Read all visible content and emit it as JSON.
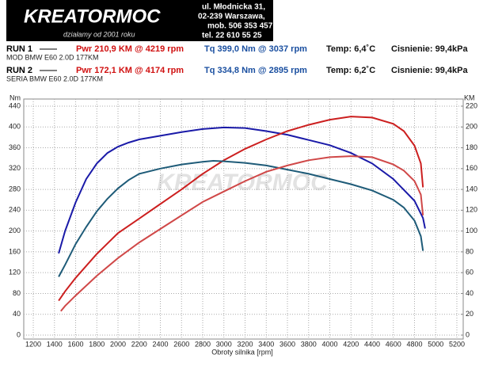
{
  "header": {
    "logo": "KREATORMOC",
    "slogan": "działamy od 2001 roku",
    "address": [
      "ul. Młodnicka 31,",
      "02-239  Warszawa,",
      "mob.  506 353 457",
      "tel.  22 610 55 25"
    ]
  },
  "runs": [
    {
      "label": "RUN 1",
      "pwr": "Pwr  210,9 KM @ 4219 rpm",
      "tq": "Tq 399,0 Nm @ 3037 rpm",
      "temp": "Temp: 6,4˚C",
      "pressure": "Cisnienie: 99,4kPa",
      "car": "MOD BMW E60 2.0D 177KM"
    },
    {
      "label": "RUN 2",
      "pwr": "Pwr  172,1 KM @ 4174 rpm",
      "tq": "Tq 334,8 Nm @ 2895 rpm",
      "temp": "Temp: 6,2˚C",
      "pressure": "Cisnienie: 99,4kPa",
      "car": "SERIA BMW E60 2.0D 177KM"
    }
  ],
  "chart_data": {
    "type": "line",
    "ylabel": "Nm",
    "y2label": "KM",
    "xlabel": "Obroty silnika [rpm]",
    "xlim": [
      1110,
      5260
    ],
    "xticks": [
      1200,
      1400,
      1600,
      1800,
      2000,
      2200,
      2400,
      2600,
      2800,
      3000,
      3200,
      3400,
      3600,
      3800,
      4000,
      4200,
      4400,
      4600,
      4800,
      5000,
      5200
    ],
    "ylim": [
      0,
      440
    ],
    "yticks": [
      0,
      40,
      80,
      120,
      160,
      200,
      240,
      280,
      320,
      360,
      400,
      440
    ],
    "y2lim": [
      0,
      220
    ],
    "y2ticks": [
      0,
      20,
      40,
      60,
      80,
      100,
      120,
      140,
      160,
      180,
      200,
      220
    ],
    "grid": true,
    "series": [
      {
        "color": "#1a1aa8",
        "x": [
          1440,
          1500,
          1600,
          1700,
          1800,
          1900,
          2000,
          2100,
          2200,
          2400,
          2600,
          2800,
          3000,
          3200,
          3400,
          3600,
          3800,
          4000,
          4200,
          4400,
          4600,
          4800,
          4880,
          4900
        ],
        "values": [
          157,
          200,
          255,
          300,
          330,
          350,
          362,
          370,
          376,
          383,
          390,
          396,
          399,
          398,
          392,
          385,
          375,
          365,
          350,
          330,
          300,
          258,
          225,
          205
        ]
      },
      {
        "color": "#cc1f1f",
        "axis": "y2",
        "x": [
          1440,
          1500,
          1600,
          1800,
          2000,
          2200,
          2400,
          2600,
          2800,
          3000,
          3200,
          3400,
          3600,
          3800,
          4000,
          4200,
          4400,
          4600,
          4700,
          4800,
          4860,
          4880
        ],
        "values": [
          33,
          42,
          55,
          78,
          98,
          112,
          126,
          140,
          155,
          168,
          179,
          188,
          196,
          202,
          207,
          210,
          209,
          203,
          196,
          182,
          165,
          142
        ]
      },
      {
        "color": "#1e5b78",
        "x": [
          1440,
          1500,
          1600,
          1700,
          1800,
          1900,
          2000,
          2100,
          2200,
          2400,
          2600,
          2800,
          2900,
          3000,
          3200,
          3400,
          3600,
          3800,
          4000,
          4200,
          4400,
          4600,
          4700,
          4800,
          4860,
          4880
        ],
        "values": [
          112,
          135,
          175,
          208,
          238,
          262,
          282,
          298,
          310,
          320,
          328,
          333,
          335,
          334,
          331,
          326,
          318,
          310,
          300,
          290,
          278,
          260,
          245,
          220,
          190,
          162
        ]
      },
      {
        "color": "#d04848",
        "axis": "y2",
        "x": [
          1460,
          1500,
          1600,
          1800,
          2000,
          2200,
          2400,
          2600,
          2800,
          3000,
          3200,
          3400,
          3600,
          3800,
          4000,
          4200,
          4400,
          4600,
          4700,
          4800,
          4860,
          4880
        ],
        "values": [
          23,
          28,
          38,
          57,
          74,
          89,
          102,
          115,
          128,
          138,
          148,
          157,
          163,
          168,
          171,
          172,
          171,
          164,
          158,
          148,
          135,
          115
        ]
      }
    ]
  }
}
